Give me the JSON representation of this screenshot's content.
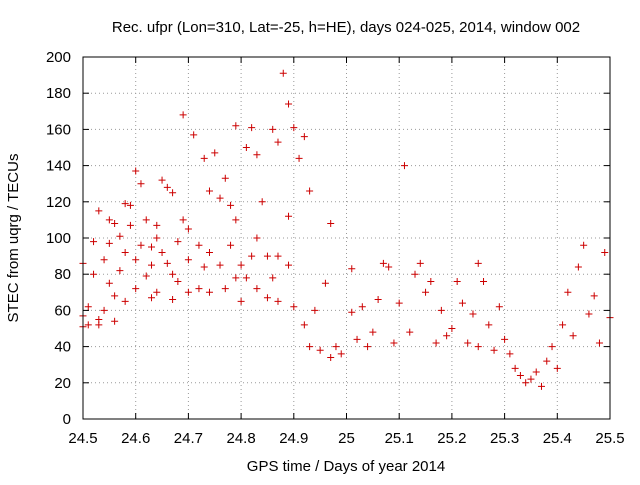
{
  "chart_data": {
    "type": "scatter",
    "title": "Rec. ufpr (Lon=310, Lat=-25, h=HE), days 024-025, 2014, window 002",
    "xlabel": "GPS time / Days of year 2014",
    "ylabel": "STEC from uqrg / TECUs",
    "xlim": [
      24.5,
      25.5
    ],
    "ylim": [
      0,
      200
    ],
    "xticks": [
      24.5,
      24.6,
      24.7,
      24.8,
      24.9,
      25,
      25.1,
      25.2,
      25.3,
      25.4,
      25.5
    ],
    "xtick_labels": [
      "24.5",
      "24.6",
      "24.7",
      "24.8",
      "24.9",
      "25",
      "25.1",
      "25.2",
      "25.3",
      "25.4",
      "25.5"
    ],
    "yticks": [
      0,
      20,
      40,
      60,
      80,
      100,
      120,
      140,
      160,
      180,
      200
    ],
    "ytick_labels": [
      "0",
      "20",
      "40",
      "60",
      "80",
      "100",
      "120",
      "140",
      "160",
      "180",
      "200"
    ],
    "grid": true,
    "legend": "none",
    "marker": "plus",
    "color": "#cc0000",
    "series": [
      {
        "points": [
          [
            24.5,
            86
          ],
          [
            24.5,
            57
          ],
          [
            24.5,
            51
          ],
          [
            24.51,
            62
          ],
          [
            24.51,
            52
          ],
          [
            24.52,
            98
          ],
          [
            24.52,
            80
          ],
          [
            24.53,
            55
          ],
          [
            24.53,
            52
          ],
          [
            24.53,
            115
          ],
          [
            24.54,
            88
          ],
          [
            24.54,
            60
          ],
          [
            24.55,
            110
          ],
          [
            24.55,
            97
          ],
          [
            24.55,
            75
          ],
          [
            24.56,
            108
          ],
          [
            24.56,
            68
          ],
          [
            24.56,
            54
          ],
          [
            24.57,
            101
          ],
          [
            24.57,
            82
          ],
          [
            24.58,
            119
          ],
          [
            24.58,
            92
          ],
          [
            24.58,
            65
          ],
          [
            24.59,
            118
          ],
          [
            24.59,
            107
          ],
          [
            24.6,
            88
          ],
          [
            24.6,
            72
          ],
          [
            24.6,
            137
          ],
          [
            24.61,
            130
          ],
          [
            24.61,
            96
          ],
          [
            24.62,
            110
          ],
          [
            24.62,
            79
          ],
          [
            24.63,
            95
          ],
          [
            24.63,
            85
          ],
          [
            24.63,
            67
          ],
          [
            24.64,
            107
          ],
          [
            24.64,
            100
          ],
          [
            24.64,
            70
          ],
          [
            24.65,
            132
          ],
          [
            24.65,
            92
          ],
          [
            24.66,
            128
          ],
          [
            24.66,
            86
          ],
          [
            24.67,
            125
          ],
          [
            24.67,
            80
          ],
          [
            24.67,
            66
          ],
          [
            24.68,
            98
          ],
          [
            24.68,
            76
          ],
          [
            24.69,
            168
          ],
          [
            24.69,
            110
          ],
          [
            24.7,
            105
          ],
          [
            24.7,
            88
          ],
          [
            24.7,
            70
          ],
          [
            24.71,
            157
          ],
          [
            24.72,
            96
          ],
          [
            24.72,
            72
          ],
          [
            24.73,
            144
          ],
          [
            24.73,
            84
          ],
          [
            24.74,
            126
          ],
          [
            24.74,
            92
          ],
          [
            24.74,
            70
          ],
          [
            24.75,
            147
          ],
          [
            24.76,
            122
          ],
          [
            24.76,
            85
          ],
          [
            24.77,
            133
          ],
          [
            24.77,
            72
          ],
          [
            24.78,
            118
          ],
          [
            24.78,
            96
          ],
          [
            24.79,
            162
          ],
          [
            24.79,
            110
          ],
          [
            24.79,
            78
          ],
          [
            24.8,
            85
          ],
          [
            24.8,
            65
          ],
          [
            24.81,
            150
          ],
          [
            24.81,
            78
          ],
          [
            24.82,
            161
          ],
          [
            24.82,
            90
          ],
          [
            24.83,
            146
          ],
          [
            24.83,
            100
          ],
          [
            24.83,
            72
          ],
          [
            24.84,
            120
          ],
          [
            24.85,
            90
          ],
          [
            24.85,
            67
          ],
          [
            24.86,
            160
          ],
          [
            24.86,
            78
          ],
          [
            24.87,
            153
          ],
          [
            24.87,
            90
          ],
          [
            24.87,
            65
          ],
          [
            24.88,
            191
          ],
          [
            24.89,
            174
          ],
          [
            24.89,
            112
          ],
          [
            24.89,
            85
          ],
          [
            24.9,
            161
          ],
          [
            24.9,
            62
          ],
          [
            24.91,
            144
          ],
          [
            24.92,
            156
          ],
          [
            24.92,
            52
          ],
          [
            24.93,
            126
          ],
          [
            24.93,
            40
          ],
          [
            24.94,
            60
          ],
          [
            24.95,
            38
          ],
          [
            24.96,
            75
          ],
          [
            24.97,
            108
          ],
          [
            24.97,
            34
          ],
          [
            24.98,
            40
          ],
          [
            24.99,
            36
          ],
          [
            25.01,
            59
          ],
          [
            25.01,
            83
          ],
          [
            25.02,
            44
          ],
          [
            25.03,
            62
          ],
          [
            25.04,
            40
          ],
          [
            25.05,
            48
          ],
          [
            25.06,
            66
          ],
          [
            25.07,
            86
          ],
          [
            25.08,
            84
          ],
          [
            25.09,
            42
          ],
          [
            25.1,
            64
          ],
          [
            25.11,
            140
          ],
          [
            25.12,
            48
          ],
          [
            25.13,
            80
          ],
          [
            25.14,
            86
          ],
          [
            25.15,
            70
          ],
          [
            25.16,
            76
          ],
          [
            25.17,
            42
          ],
          [
            25.18,
            60
          ],
          [
            25.19,
            46
          ],
          [
            25.2,
            50
          ],
          [
            25.21,
            76
          ],
          [
            25.22,
            64
          ],
          [
            25.23,
            42
          ],
          [
            25.24,
            58
          ],
          [
            25.25,
            86
          ],
          [
            25.25,
            40
          ],
          [
            25.26,
            76
          ],
          [
            25.27,
            52
          ],
          [
            25.28,
            38
          ],
          [
            25.29,
            62
          ],
          [
            25.3,
            44
          ],
          [
            25.31,
            36
          ],
          [
            25.32,
            28
          ],
          [
            25.33,
            24
          ],
          [
            25.34,
            20
          ],
          [
            25.35,
            22
          ],
          [
            25.36,
            26
          ],
          [
            25.37,
            18
          ],
          [
            25.38,
            32
          ],
          [
            25.39,
            40
          ],
          [
            25.4,
            28
          ],
          [
            25.41,
            52
          ],
          [
            25.42,
            70
          ],
          [
            25.43,
            46
          ],
          [
            25.44,
            84
          ],
          [
            25.45,
            96
          ],
          [
            25.46,
            58
          ],
          [
            25.47,
            68
          ],
          [
            25.48,
            42
          ],
          [
            25.49,
            92
          ],
          [
            25.5,
            56
          ]
        ]
      }
    ]
  }
}
